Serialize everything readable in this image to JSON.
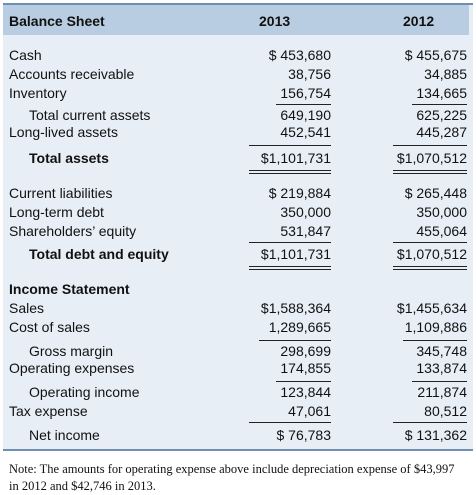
{
  "header": {
    "title": "Balance Sheet",
    "year_a": "2013",
    "year_b": "2012"
  },
  "balance_sheet": {
    "cash": {
      "label": "Cash",
      "a": "$ 453,680",
      "b": "$ 455,675"
    },
    "ar": {
      "label": "Accounts receivable",
      "a": "38,756",
      "b": "34,885"
    },
    "inventory": {
      "label": "Inventory",
      "a": "156,754",
      "b": "134,665"
    },
    "tca": {
      "label": "Total current assets",
      "a": "649,190",
      "b": "625,225"
    },
    "lla": {
      "label": "Long-lived assets",
      "a": "452,541",
      "b": "445,287"
    },
    "ta": {
      "label": "Total assets",
      "a": "$1,101,731",
      "b": "$1,070,512"
    },
    "cl": {
      "label": "Current liabilities",
      "a": "$  219,884",
      "b": "$  265,448"
    },
    "ltd": {
      "label": "Long-term debt",
      "a": "350,000",
      "b": "350,000"
    },
    "se": {
      "label": "Shareholders’ equity",
      "a": "531,847",
      "b": "455,064"
    },
    "tde": {
      "label": "Total debt and equity",
      "a": "$1,101,731",
      "b": "$1,070,512"
    }
  },
  "income_statement": {
    "title": "Income Statement",
    "sales": {
      "label": "Sales",
      "a": "$1,588,364",
      "b": "$1,455,634"
    },
    "cos": {
      "label": "Cost of sales",
      "a": "1,289,665",
      "b": "1,109,886"
    },
    "gm": {
      "label": "Gross margin",
      "a": "298,699",
      "b": "345,748"
    },
    "opex": {
      "label": "Operating expenses",
      "a": "174,855",
      "b": "133,874"
    },
    "oi": {
      "label": "Operating income",
      "a": "123,844",
      "b": "211,874"
    },
    "tax": {
      "label": "Tax expense",
      "a": "47,061",
      "b": "80,512"
    },
    "ni": {
      "label": "Net income",
      "a": "$   76,783",
      "b": "$  131,362"
    }
  },
  "note": "Note: The amounts for operating expense above include depreciation expense of $43,997 in 2012 and $42,746 in 2013.",
  "colors": {
    "panel": "#e7eef6",
    "header": "#b9cde2",
    "border": "#6f8fb0"
  }
}
